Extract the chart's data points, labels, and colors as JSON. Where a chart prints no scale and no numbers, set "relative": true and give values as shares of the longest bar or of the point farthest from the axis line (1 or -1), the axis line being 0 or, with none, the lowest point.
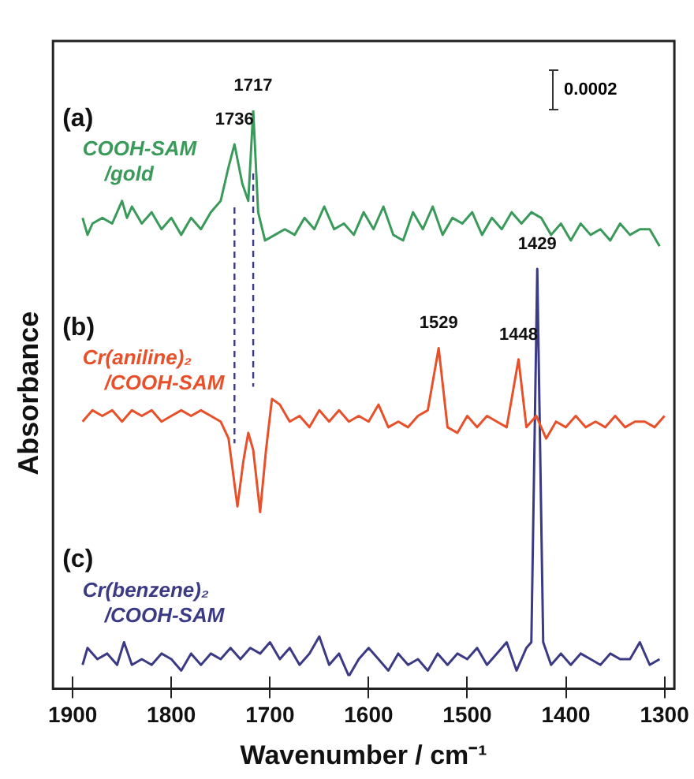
{
  "chart_data": {
    "type": "line",
    "relative": true,
    "xlabel": "Wavenumber / cm⁻¹",
    "ylabel": "Absorbance",
    "xlim": [
      1920,
      1290
    ],
    "xticks": [
      1900,
      1800,
      1700,
      1600,
      1500,
      1400,
      1300
    ],
    "grid": false,
    "legend": false,
    "marker": "none",
    "tick_labels": "x",
    "series": [
      {
        "name": "COOH-SAM/gold",
        "color": "#3a9a5a",
        "x": [
          1890,
          1885,
          1880,
          1870,
          1860,
          1850,
          1845,
          1840,
          1830,
          1820,
          1810,
          1800,
          1790,
          1780,
          1770,
          1760,
          1750,
          1742,
          1736,
          1728,
          1722,
          1717,
          1712,
          1705,
          1695,
          1685,
          1675,
          1665,
          1655,
          1645,
          1635,
          1625,
          1615,
          1605,
          1595,
          1585,
          1575,
          1565,
          1555,
          1545,
          1535,
          1525,
          1515,
          1505,
          1495,
          1485,
          1475,
          1465,
          1455,
          1445,
          1435,
          1425,
          1415,
          1405,
          1395,
          1385,
          1375,
          1365,
          1355,
          1345,
          1335,
          1325,
          1315,
          1305
        ],
        "values": [
          0.81,
          0.78,
          0.8,
          0.81,
          0.8,
          0.84,
          0.81,
          0.83,
          0.8,
          0.82,
          0.79,
          0.81,
          0.78,
          0.81,
          0.79,
          0.82,
          0.84,
          0.9,
          0.94,
          0.87,
          0.84,
          1,
          0.82,
          0.77,
          0.78,
          0.79,
          0.78,
          0.81,
          0.79,
          0.83,
          0.79,
          0.8,
          0.78,
          0.82,
          0.79,
          0.83,
          0.78,
          0.77,
          0.82,
          0.79,
          0.83,
          0.78,
          0.81,
          0.8,
          0.82,
          0.78,
          0.81,
          0.79,
          0.82,
          0.8,
          0.82,
          0.81,
          0.78,
          0.8,
          0.77,
          0.8,
          0.78,
          0.79,
          0.77,
          0.8,
          0.78,
          0.79,
          0.79,
          0.76
        ]
      },
      {
        "name": "Cr(aniline)₂/COOH-SAM",
        "color": "#e8502a",
        "x": [
          1890,
          1880,
          1870,
          1860,
          1850,
          1840,
          1830,
          1820,
          1810,
          1800,
          1790,
          1780,
          1770,
          1760,
          1750,
          1742,
          1733,
          1727,
          1722,
          1717,
          1710,
          1704,
          1698,
          1690,
          1680,
          1670,
          1660,
          1650,
          1640,
          1630,
          1620,
          1610,
          1600,
          1590,
          1580,
          1570,
          1560,
          1550,
          1540,
          1529,
          1520,
          1510,
          1500,
          1490,
          1480,
          1470,
          1460,
          1448,
          1440,
          1430,
          1420,
          1410,
          1400,
          1390,
          1380,
          1370,
          1360,
          1350,
          1340,
          1330,
          1320,
          1310,
          1300
        ],
        "values": [
          0.45,
          0.47,
          0.46,
          0.47,
          0.45,
          0.47,
          0.46,
          0.47,
          0.45,
          0.46,
          0.47,
          0.46,
          0.47,
          0.46,
          0.45,
          0.42,
          0.3,
          0.38,
          0.43,
          0.4,
          0.29,
          0.4,
          0.49,
          0.48,
          0.45,
          0.46,
          0.44,
          0.47,
          0.45,
          0.47,
          0.45,
          0.46,
          0.45,
          0.48,
          0.44,
          0.45,
          0.44,
          0.46,
          0.47,
          0.58,
          0.44,
          0.43,
          0.46,
          0.44,
          0.46,
          0.45,
          0.44,
          0.56,
          0.44,
          0.46,
          0.42,
          0.45,
          0.44,
          0.46,
          0.44,
          0.45,
          0.44,
          0.46,
          0.44,
          0.45,
          0.45,
          0.44,
          0.46
        ]
      },
      {
        "name": "Cr(benzene)₂/COOH-SAM",
        "color": "#3b3a84",
        "x": [
          1890,
          1885,
          1875,
          1865,
          1855,
          1848,
          1840,
          1830,
          1820,
          1810,
          1800,
          1790,
          1780,
          1770,
          1760,
          1750,
          1740,
          1730,
          1720,
          1710,
          1700,
          1690,
          1680,
          1670,
          1660,
          1650,
          1640,
          1630,
          1620,
          1610,
          1600,
          1590,
          1580,
          1570,
          1560,
          1550,
          1540,
          1530,
          1520,
          1510,
          1500,
          1490,
          1480,
          1470,
          1460,
          1450,
          1440,
          1435,
          1429,
          1423,
          1415,
          1405,
          1395,
          1385,
          1375,
          1365,
          1355,
          1345,
          1335,
          1325,
          1315,
          1305
        ],
        "values": [
          0.02,
          0.05,
          0.03,
          0.04,
          0.02,
          0.06,
          0.02,
          0.03,
          0.02,
          0.04,
          0.03,
          0.01,
          0.04,
          0.02,
          0.04,
          0.03,
          0.05,
          0.03,
          0.05,
          0.04,
          0.06,
          0.03,
          0.05,
          0.02,
          0.04,
          0.07,
          0.02,
          0.04,
          0,
          0.03,
          0.05,
          0.03,
          0.01,
          0.04,
          0.02,
          0.03,
          0.01,
          0.04,
          0.02,
          0.04,
          0.03,
          0.05,
          0.02,
          0.04,
          0.06,
          0.01,
          0.05,
          0.06,
          0.72,
          0.06,
          0.02,
          0.04,
          0.02,
          0.04,
          0.03,
          0.02,
          0.04,
          0.03,
          0.03,
          0.06,
          0.02,
          0.03
        ]
      }
    ],
    "ref_lines": [
      {
        "axis": "x",
        "value": 1736,
        "color": "#3b3a84",
        "line_style": "dashed"
      },
      {
        "axis": "x",
        "value": 1717,
        "color": "#3b3a84",
        "line_style": "dashed"
      }
    ],
    "annotations": [
      {
        "text": "1736",
        "x": 1736,
        "y": 0.94
      },
      {
        "text": "1717",
        "x": 1717,
        "y": 1
      },
      {
        "text": "1529",
        "x": 1529,
        "y": 0.58
      },
      {
        "text": "1448",
        "x": 1448,
        "y": 0.56
      },
      {
        "text": "1429",
        "x": 1429,
        "y": 0.72
      },
      "(a)",
      "(b)",
      "(c)",
      "0.0002"
    ]
  }
}
